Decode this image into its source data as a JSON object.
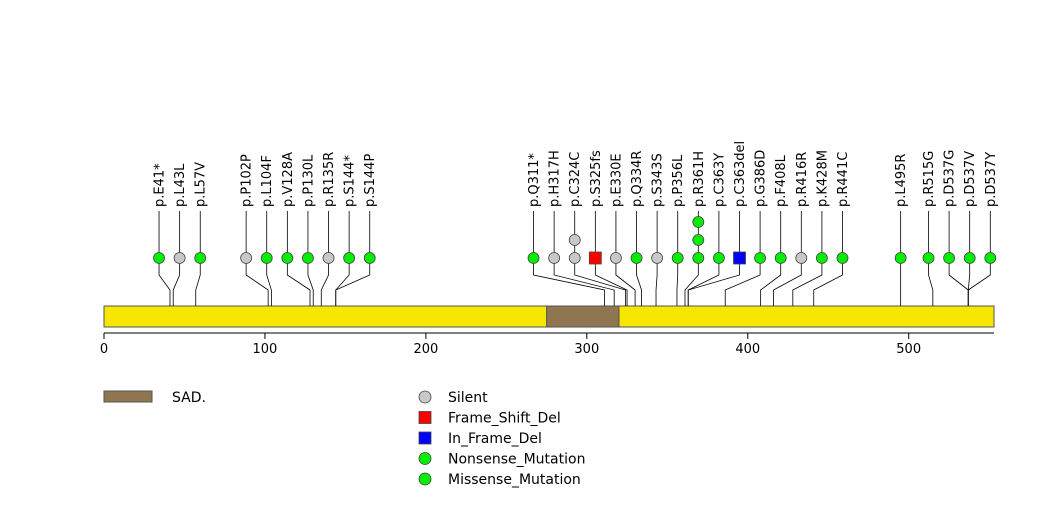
{
  "chart_data": {
    "type": "lollipop",
    "protein_length": 553,
    "xlim": [
      0,
      553
    ],
    "x_ticks": [
      0,
      100,
      200,
      300,
      400,
      500
    ],
    "backbone_color": "#f7e600",
    "domains": [
      {
        "name": "SAD.",
        "start": 275,
        "end": 320,
        "color": "#8f7550"
      }
    ],
    "mutation_types": [
      {
        "name": "Silent",
        "color": "#c8c8c8",
        "shape": "circle"
      },
      {
        "name": "Frame_Shift_Del",
        "color": "#ff0000",
        "shape": "square"
      },
      {
        "name": "In_Frame_Del",
        "color": "#0000ff",
        "shape": "square"
      },
      {
        "name": "Nonsense_Mutation",
        "color": "#00ee00",
        "shape": "circle"
      },
      {
        "name": "Missense_Mutation",
        "color": "#00ee00",
        "shape": "circle"
      }
    ],
    "mutations": [
      {
        "label": "p.E41*",
        "position": 41,
        "count": 1,
        "type": "Nonsense_Mutation"
      },
      {
        "label": "p.L43L",
        "position": 43,
        "count": 1,
        "type": "Silent"
      },
      {
        "label": "p.L57V",
        "position": 57,
        "count": 1,
        "type": "Missense_Mutation"
      },
      {
        "label": "p.P102P",
        "position": 102,
        "count": 1,
        "type": "Silent"
      },
      {
        "label": "p.L104F",
        "position": 104,
        "count": 1,
        "type": "Missense_Mutation"
      },
      {
        "label": "p.V128A",
        "position": 128,
        "count": 1,
        "type": "Missense_Mutation"
      },
      {
        "label": "p.P130L",
        "position": 130,
        "count": 1,
        "type": "Missense_Mutation"
      },
      {
        "label": "p.R135R",
        "position": 135,
        "count": 1,
        "type": "Silent"
      },
      {
        "label": "p.S144*",
        "position": 144,
        "count": 1,
        "type": "Nonsense_Mutation"
      },
      {
        "label": "p.S144P",
        "position": 144,
        "count": 1,
        "type": "Missense_Mutation"
      },
      {
        "label": "p.Q311*",
        "position": 311,
        "count": 1,
        "type": "Nonsense_Mutation"
      },
      {
        "label": "p.H317H",
        "position": 317,
        "count": 1,
        "type": "Silent"
      },
      {
        "label": "p.C324C",
        "position": 324,
        "count": 2,
        "type": "Silent"
      },
      {
        "label": "p.S325fs",
        "position": 325,
        "count": 1,
        "type": "Frame_Shift_Del"
      },
      {
        "label": "p.E330E",
        "position": 330,
        "count": 1,
        "type": "Silent"
      },
      {
        "label": "p.Q334R",
        "position": 334,
        "count": 1,
        "type": "Missense_Mutation"
      },
      {
        "label": "p.S343S",
        "position": 343,
        "count": 1,
        "type": "Silent"
      },
      {
        "label": "p.P356L",
        "position": 356,
        "count": 1,
        "type": "Missense_Mutation"
      },
      {
        "label": "p.R361H",
        "position": 361,
        "count": 3,
        "type": "Missense_Mutation"
      },
      {
        "label": "p.C363Y",
        "position": 363,
        "count": 1,
        "type": "Missense_Mutation"
      },
      {
        "label": "p.C363del",
        "position": 363,
        "count": 1,
        "type": "In_Frame_Del"
      },
      {
        "label": "p.G386D",
        "position": 386,
        "count": 1,
        "type": "Missense_Mutation"
      },
      {
        "label": "p.F408L",
        "position": 408,
        "count": 1,
        "type": "Missense_Mutation"
      },
      {
        "label": "p.R416R",
        "position": 416,
        "count": 1,
        "type": "Silent"
      },
      {
        "label": "p.K428M",
        "position": 428,
        "count": 1,
        "type": "Missense_Mutation"
      },
      {
        "label": "p.R441C",
        "position": 441,
        "count": 1,
        "type": "Missense_Mutation"
      },
      {
        "label": "p.L495R",
        "position": 495,
        "count": 1,
        "type": "Missense_Mutation"
      },
      {
        "label": "p.R515G",
        "position": 515,
        "count": 1,
        "type": "Missense_Mutation"
      },
      {
        "label": "p.D537G",
        "position": 537,
        "count": 1,
        "type": "Missense_Mutation"
      },
      {
        "label": "p.D537V",
        "position": 537,
        "count": 1,
        "type": "Missense_Mutation"
      },
      {
        "label": "p.D537Y",
        "position": 537,
        "count": 1,
        "type": "Missense_Mutation"
      }
    ]
  }
}
